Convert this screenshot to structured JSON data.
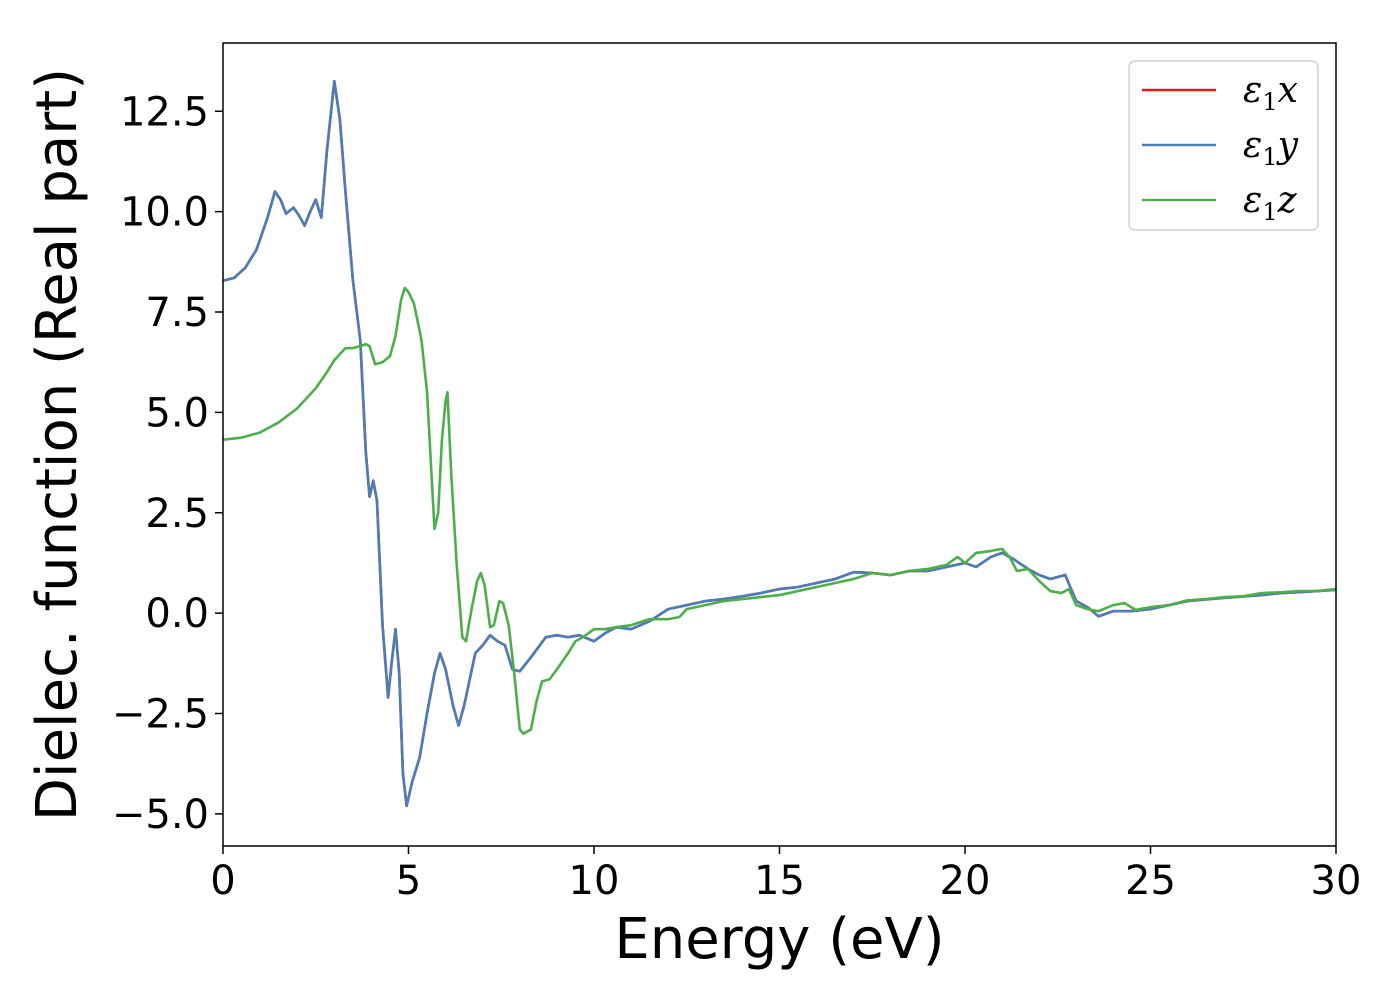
{
  "chart_data": {
    "type": "line",
    "title": "",
    "xlabel": "Energy (eV)",
    "ylabel": "Dielec. function (Real part)",
    "xlim": [
      0,
      30
    ],
    "ylim": [
      -5.8,
      14.2
    ],
    "x_ticks": [
      0,
      5,
      10,
      15,
      20,
      25,
      30
    ],
    "y_ticks": [
      -5.0,
      -2.5,
      0.0,
      2.5,
      5.0,
      7.5,
      10.0,
      12.5
    ],
    "x_tick_labels": [
      "0",
      "5",
      "10",
      "15",
      "20",
      "25",
      "30"
    ],
    "y_tick_labels": [
      "−5.0",
      "−2.5",
      "0.0",
      "2.5",
      "5.0",
      "7.5",
      "10.0",
      "12.5"
    ],
    "grid": false,
    "legend_position": "top-right",
    "series": [
      {
        "name": "ε₁x",
        "legend_main": "ε",
        "legend_sub": "1",
        "legend_tail": "x",
        "color": "#e41a1c",
        "points": [
          [
            0,
            8.28
          ],
          [
            0.3,
            8.35
          ],
          [
            0.6,
            8.6
          ],
          [
            0.9,
            9.05
          ],
          [
            1.2,
            9.85
          ],
          [
            1.4,
            10.5
          ],
          [
            1.55,
            10.3
          ],
          [
            1.7,
            9.95
          ],
          [
            1.9,
            10.1
          ],
          [
            2.05,
            9.9
          ],
          [
            2.2,
            9.65
          ],
          [
            2.35,
            10.0
          ],
          [
            2.5,
            10.3
          ],
          [
            2.65,
            9.85
          ],
          [
            2.8,
            11.5
          ],
          [
            3.0,
            13.25
          ],
          [
            3.15,
            12.3
          ],
          [
            3.3,
            10.5
          ],
          [
            3.5,
            8.3
          ],
          [
            3.7,
            6.8
          ],
          [
            3.85,
            4.0
          ],
          [
            3.95,
            2.9
          ],
          [
            4.05,
            3.3
          ],
          [
            4.15,
            2.8
          ],
          [
            4.3,
            -0.3
          ],
          [
            4.45,
            -2.1
          ],
          [
            4.55,
            -1.2
          ],
          [
            4.65,
            -0.4
          ],
          [
            4.75,
            -1.5
          ],
          [
            4.85,
            -4.0
          ],
          [
            4.95,
            -4.8
          ],
          [
            5.1,
            -4.2
          ],
          [
            5.3,
            -3.6
          ],
          [
            5.5,
            -2.5
          ],
          [
            5.7,
            -1.5
          ],
          [
            5.85,
            -1.0
          ],
          [
            6.0,
            -1.4
          ],
          [
            6.2,
            -2.3
          ],
          [
            6.35,
            -2.8
          ],
          [
            6.5,
            -2.3
          ],
          [
            6.8,
            -1.0
          ],
          [
            7.0,
            -0.8
          ],
          [
            7.2,
            -0.55
          ],
          [
            7.4,
            -0.7
          ],
          [
            7.6,
            -0.8
          ],
          [
            7.8,
            -1.4
          ],
          [
            8.0,
            -1.45
          ],
          [
            8.3,
            -1.1
          ],
          [
            8.7,
            -0.6
          ],
          [
            9.0,
            -0.55
          ],
          [
            9.3,
            -0.6
          ],
          [
            9.6,
            -0.55
          ],
          [
            10.0,
            -0.7
          ],
          [
            10.3,
            -0.5
          ],
          [
            10.6,
            -0.35
          ],
          [
            11.0,
            -0.4
          ],
          [
            11.5,
            -0.2
          ],
          [
            12.0,
            0.1
          ],
          [
            12.5,
            0.2
          ],
          [
            13.0,
            0.3
          ],
          [
            13.5,
            0.35
          ],
          [
            14.0,
            0.42
          ],
          [
            14.5,
            0.5
          ],
          [
            15.0,
            0.6
          ],
          [
            15.5,
            0.65
          ],
          [
            16.0,
            0.75
          ],
          [
            16.5,
            0.85
          ],
          [
            17.0,
            1.02
          ],
          [
            17.5,
            1.0
          ],
          [
            18.0,
            0.95
          ],
          [
            18.5,
            1.05
          ],
          [
            19.0,
            1.05
          ],
          [
            19.5,
            1.15
          ],
          [
            20.0,
            1.25
          ],
          [
            20.3,
            1.15
          ],
          [
            20.7,
            1.4
          ],
          [
            21.0,
            1.5
          ],
          [
            21.3,
            1.35
          ],
          [
            21.7,
            1.1
          ],
          [
            22.0,
            0.95
          ],
          [
            22.3,
            0.85
          ],
          [
            22.5,
            0.9
          ],
          [
            22.7,
            0.95
          ],
          [
            23.0,
            0.3
          ],
          [
            23.3,
            0.15
          ],
          [
            23.6,
            -0.08
          ],
          [
            24.0,
            0.05
          ],
          [
            24.5,
            0.05
          ],
          [
            25.0,
            0.1
          ],
          [
            25.5,
            0.2
          ],
          [
            26.0,
            0.3
          ],
          [
            27.0,
            0.38
          ],
          [
            28.0,
            0.45
          ],
          [
            28.5,
            0.5
          ],
          [
            29.0,
            0.52
          ],
          [
            29.5,
            0.55
          ],
          [
            30.0,
            0.58
          ]
        ]
      },
      {
        "name": "ε₁y",
        "legend_main": "ε",
        "legend_sub": "1",
        "legend_tail": "y",
        "color": "#4a7eb8",
        "points": [
          [
            0,
            8.28
          ],
          [
            0.3,
            8.35
          ],
          [
            0.6,
            8.6
          ],
          [
            0.9,
            9.05
          ],
          [
            1.2,
            9.85
          ],
          [
            1.4,
            10.5
          ],
          [
            1.55,
            10.3
          ],
          [
            1.7,
            9.95
          ],
          [
            1.9,
            10.1
          ],
          [
            2.05,
            9.9
          ],
          [
            2.2,
            9.65
          ],
          [
            2.35,
            10.0
          ],
          [
            2.5,
            10.3
          ],
          [
            2.65,
            9.85
          ],
          [
            2.8,
            11.5
          ],
          [
            3.0,
            13.25
          ],
          [
            3.15,
            12.3
          ],
          [
            3.3,
            10.5
          ],
          [
            3.5,
            8.3
          ],
          [
            3.7,
            6.8
          ],
          [
            3.85,
            4.0
          ],
          [
            3.95,
            2.9
          ],
          [
            4.05,
            3.3
          ],
          [
            4.15,
            2.8
          ],
          [
            4.3,
            -0.3
          ],
          [
            4.45,
            -2.1
          ],
          [
            4.55,
            -1.2
          ],
          [
            4.65,
            -0.4
          ],
          [
            4.75,
            -1.5
          ],
          [
            4.85,
            -4.0
          ],
          [
            4.95,
            -4.8
          ],
          [
            5.1,
            -4.2
          ],
          [
            5.3,
            -3.6
          ],
          [
            5.5,
            -2.5
          ],
          [
            5.7,
            -1.5
          ],
          [
            5.85,
            -1.0
          ],
          [
            6.0,
            -1.4
          ],
          [
            6.2,
            -2.3
          ],
          [
            6.35,
            -2.8
          ],
          [
            6.5,
            -2.3
          ],
          [
            6.8,
            -1.0
          ],
          [
            7.0,
            -0.8
          ],
          [
            7.2,
            -0.55
          ],
          [
            7.4,
            -0.7
          ],
          [
            7.6,
            -0.8
          ],
          [
            7.8,
            -1.4
          ],
          [
            8.0,
            -1.45
          ],
          [
            8.3,
            -1.1
          ],
          [
            8.7,
            -0.6
          ],
          [
            9.0,
            -0.55
          ],
          [
            9.3,
            -0.6
          ],
          [
            9.6,
            -0.55
          ],
          [
            10.0,
            -0.7
          ],
          [
            10.3,
            -0.5
          ],
          [
            10.6,
            -0.35
          ],
          [
            11.0,
            -0.4
          ],
          [
            11.5,
            -0.2
          ],
          [
            12.0,
            0.1
          ],
          [
            12.5,
            0.2
          ],
          [
            13.0,
            0.3
          ],
          [
            13.5,
            0.35
          ],
          [
            14.0,
            0.42
          ],
          [
            14.5,
            0.5
          ],
          [
            15.0,
            0.6
          ],
          [
            15.5,
            0.65
          ],
          [
            16.0,
            0.75
          ],
          [
            16.5,
            0.85
          ],
          [
            17.0,
            1.02
          ],
          [
            17.5,
            1.0
          ],
          [
            18.0,
            0.95
          ],
          [
            18.5,
            1.05
          ],
          [
            19.0,
            1.05
          ],
          [
            19.5,
            1.15
          ],
          [
            20.0,
            1.25
          ],
          [
            20.3,
            1.15
          ],
          [
            20.7,
            1.4
          ],
          [
            21.0,
            1.5
          ],
          [
            21.3,
            1.35
          ],
          [
            21.7,
            1.1
          ],
          [
            22.0,
            0.95
          ],
          [
            22.3,
            0.85
          ],
          [
            22.5,
            0.9
          ],
          [
            22.7,
            0.95
          ],
          [
            23.0,
            0.3
          ],
          [
            23.3,
            0.15
          ],
          [
            23.6,
            -0.08
          ],
          [
            24.0,
            0.05
          ],
          [
            24.5,
            0.05
          ],
          [
            25.0,
            0.1
          ],
          [
            25.5,
            0.2
          ],
          [
            26.0,
            0.3
          ],
          [
            27.0,
            0.38
          ],
          [
            28.0,
            0.45
          ],
          [
            28.5,
            0.5
          ],
          [
            29.0,
            0.52
          ],
          [
            29.5,
            0.55
          ],
          [
            30.0,
            0.58
          ]
        ]
      },
      {
        "name": "ε₁z",
        "legend_main": "ε",
        "legend_sub": "1",
        "legend_tail": "z",
        "color": "#4daf4a",
        "points": [
          [
            0,
            4.32
          ],
          [
            0.5,
            4.37
          ],
          [
            1.0,
            4.5
          ],
          [
            1.5,
            4.75
          ],
          [
            2.0,
            5.1
          ],
          [
            2.5,
            5.6
          ],
          [
            2.8,
            6.0
          ],
          [
            3.0,
            6.3
          ],
          [
            3.3,
            6.6
          ],
          [
            3.5,
            6.6
          ],
          [
            3.7,
            6.65
          ],
          [
            3.85,
            6.7
          ],
          [
            3.95,
            6.65
          ],
          [
            4.1,
            6.2
          ],
          [
            4.3,
            6.25
          ],
          [
            4.5,
            6.4
          ],
          [
            4.65,
            6.9
          ],
          [
            4.8,
            7.8
          ],
          [
            4.9,
            8.1
          ],
          [
            5.0,
            8.0
          ],
          [
            5.15,
            7.7
          ],
          [
            5.35,
            6.8
          ],
          [
            5.5,
            5.5
          ],
          [
            5.6,
            3.8
          ],
          [
            5.7,
            2.1
          ],
          [
            5.8,
            2.5
          ],
          [
            5.9,
            4.3
          ],
          [
            6.0,
            5.3
          ],
          [
            6.05,
            5.5
          ],
          [
            6.15,
            3.5
          ],
          [
            6.3,
            1.2
          ],
          [
            6.45,
            -0.6
          ],
          [
            6.55,
            -0.7
          ],
          [
            6.7,
            0.1
          ],
          [
            6.85,
            0.8
          ],
          [
            6.95,
            1.0
          ],
          [
            7.05,
            0.7
          ],
          [
            7.2,
            -0.35
          ],
          [
            7.3,
            -0.3
          ],
          [
            7.45,
            0.3
          ],
          [
            7.55,
            0.25
          ],
          [
            7.7,
            -0.3
          ],
          [
            7.85,
            -1.5
          ],
          [
            8.0,
            -2.9
          ],
          [
            8.1,
            -3.0
          ],
          [
            8.3,
            -2.9
          ],
          [
            8.45,
            -2.2
          ],
          [
            8.6,
            -1.7
          ],
          [
            8.8,
            -1.65
          ],
          [
            9.0,
            -1.4
          ],
          [
            9.3,
            -1.0
          ],
          [
            9.5,
            -0.7
          ],
          [
            9.7,
            -0.6
          ],
          [
            10.0,
            -0.4
          ],
          [
            10.3,
            -0.4
          ],
          [
            10.6,
            -0.35
          ],
          [
            11.0,
            -0.3
          ],
          [
            11.5,
            -0.15
          ],
          [
            12.0,
            -0.15
          ],
          [
            12.3,
            -0.1
          ],
          [
            12.5,
            0.1
          ],
          [
            13.0,
            0.2
          ],
          [
            13.5,
            0.3
          ],
          [
            14.0,
            0.35
          ],
          [
            14.5,
            0.4
          ],
          [
            15.0,
            0.45
          ],
          [
            15.5,
            0.55
          ],
          [
            16.0,
            0.65
          ],
          [
            16.5,
            0.75
          ],
          [
            17.0,
            0.85
          ],
          [
            17.5,
            1.0
          ],
          [
            18.0,
            0.95
          ],
          [
            18.5,
            1.05
          ],
          [
            19.0,
            1.1
          ],
          [
            19.5,
            1.2
          ],
          [
            19.8,
            1.4
          ],
          [
            20.0,
            1.25
          ],
          [
            20.3,
            1.5
          ],
          [
            20.7,
            1.55
          ],
          [
            21.0,
            1.6
          ],
          [
            21.2,
            1.4
          ],
          [
            21.4,
            1.05
          ],
          [
            21.7,
            1.1
          ],
          [
            22.0,
            0.8
          ],
          [
            22.3,
            0.55
          ],
          [
            22.6,
            0.5
          ],
          [
            22.8,
            0.6
          ],
          [
            23.0,
            0.2
          ],
          [
            23.3,
            0.1
          ],
          [
            23.6,
            0.05
          ],
          [
            24.0,
            0.2
          ],
          [
            24.3,
            0.25
          ],
          [
            24.6,
            0.08
          ],
          [
            25.0,
            0.15
          ],
          [
            25.5,
            0.2
          ],
          [
            26.0,
            0.32
          ],
          [
            26.5,
            0.35
          ],
          [
            27.0,
            0.4
          ],
          [
            27.5,
            0.42
          ],
          [
            28.0,
            0.5
          ],
          [
            28.5,
            0.52
          ],
          [
            29.0,
            0.55
          ],
          [
            29.5,
            0.55
          ],
          [
            30.0,
            0.6
          ]
        ]
      }
    ]
  }
}
